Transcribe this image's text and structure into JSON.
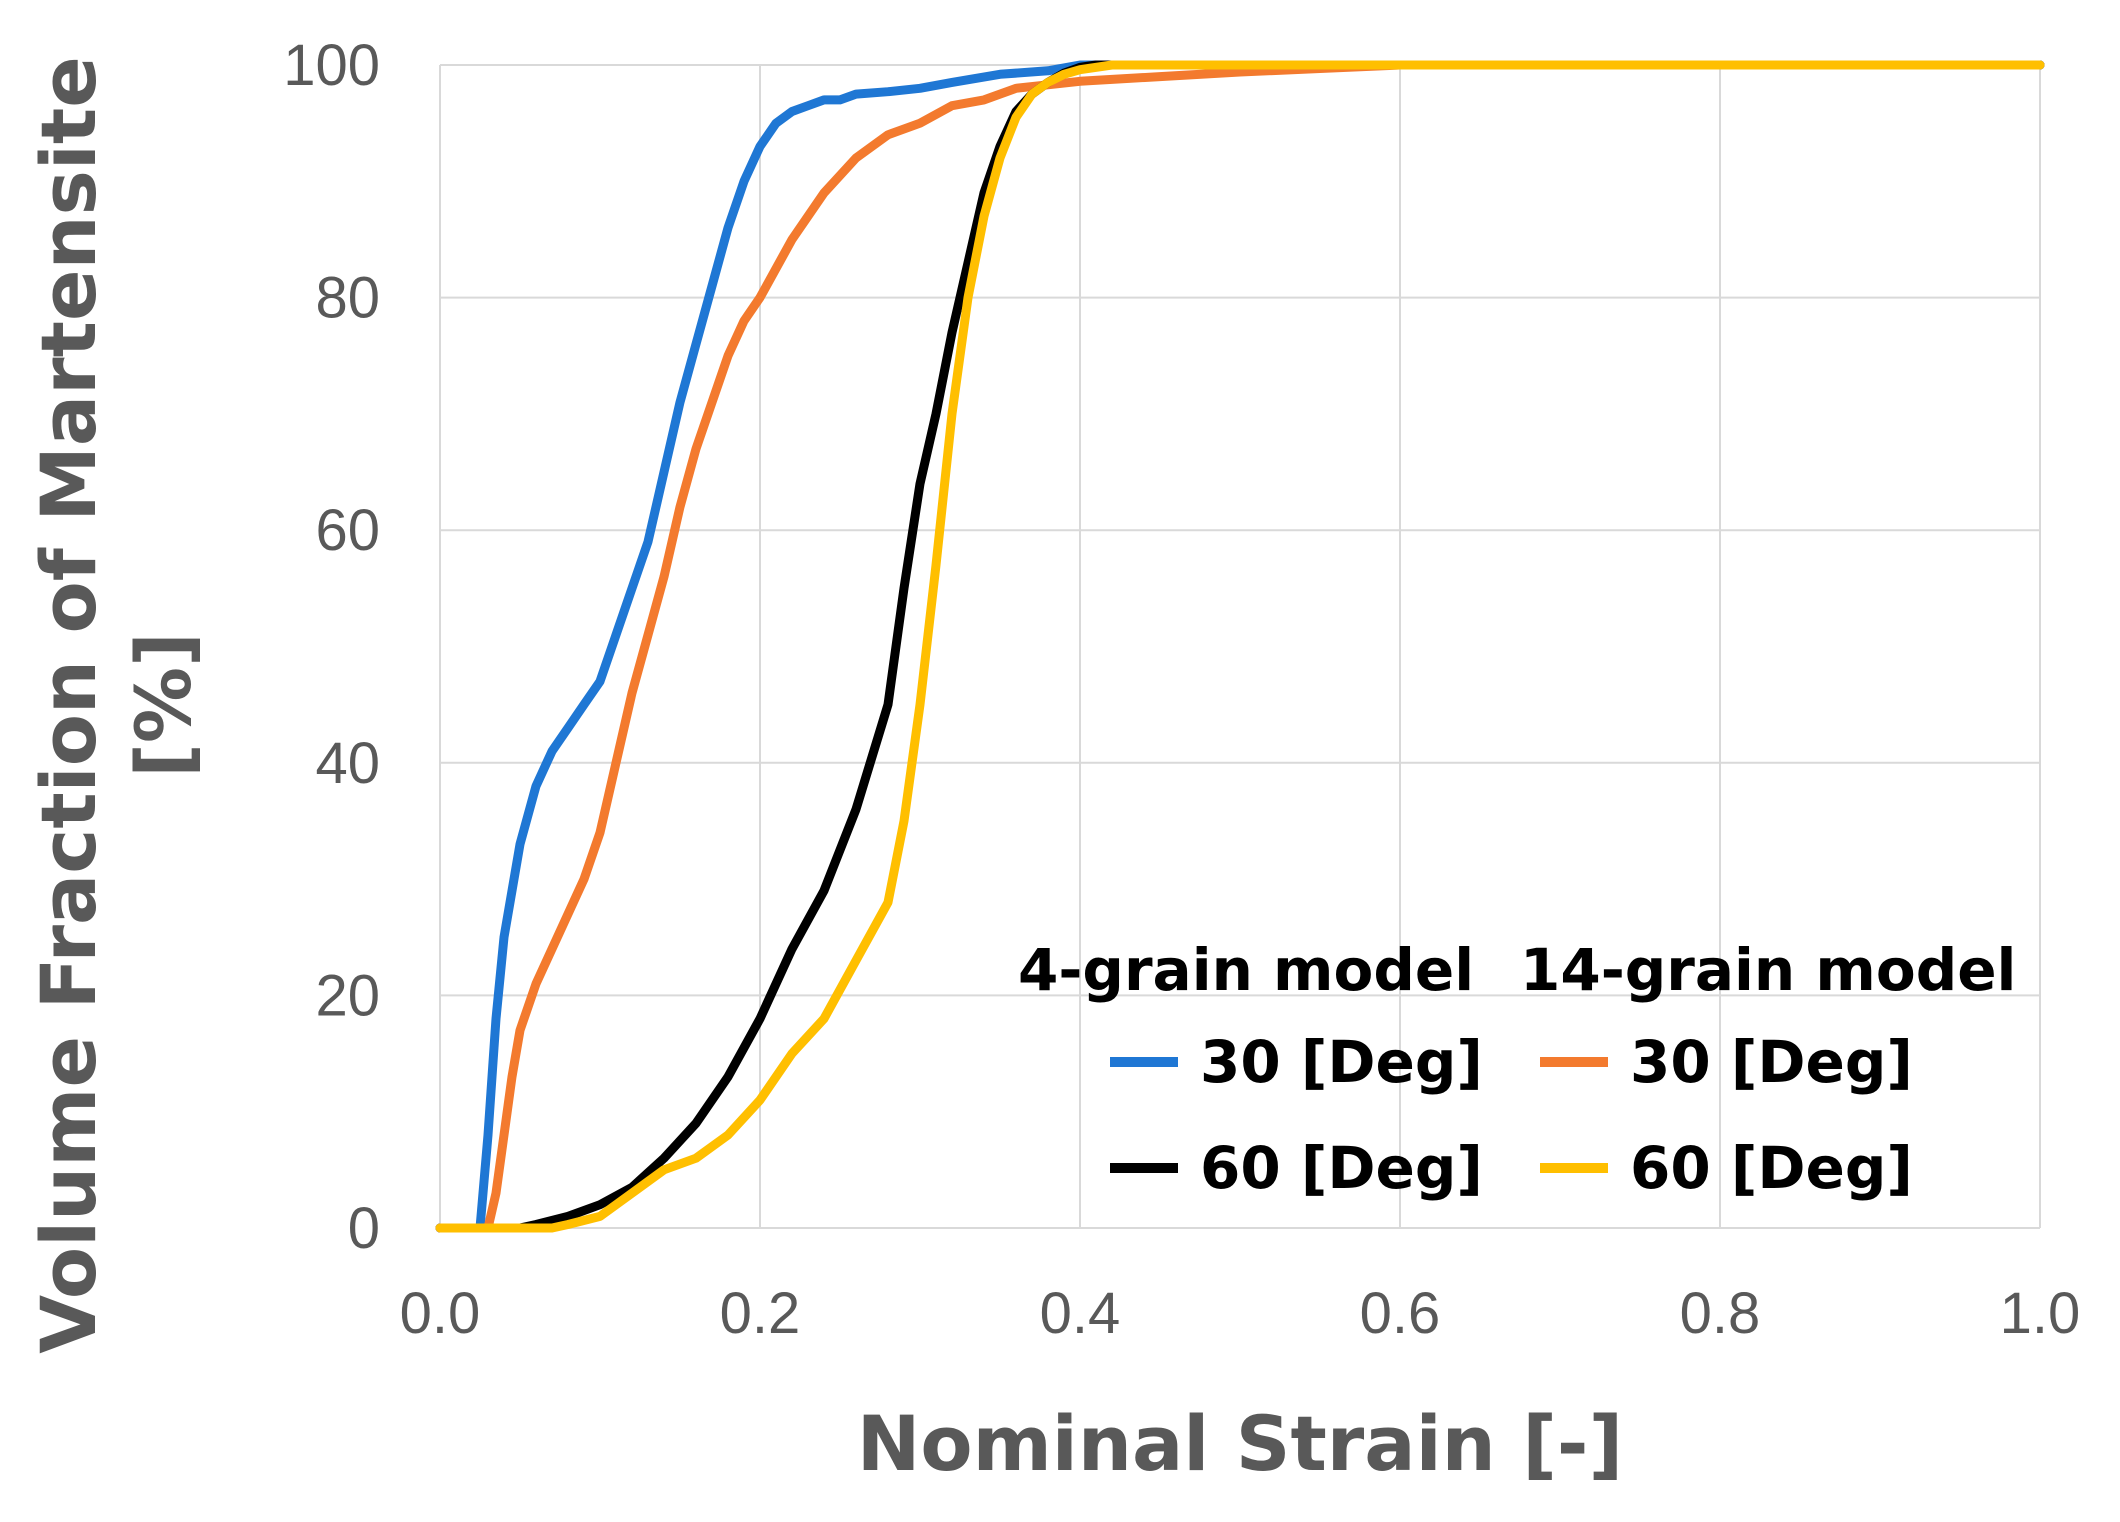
{
  "chart_data": {
    "type": "line",
    "title": "",
    "xlabel": "Nominal Strain [-]",
    "ylabel_line1": "Volume Fraction of Martensite",
    "ylabel_line2": "[%]",
    "xlim": [
      0,
      1
    ],
    "ylim": [
      0,
      100
    ],
    "grid": true,
    "x_ticks": [
      0,
      0.2,
      0.4,
      0.6,
      0.8,
      1.0
    ],
    "x_tick_labels": [
      "0.0",
      "0.2",
      "0.4",
      "0.6",
      "0.8",
      "1.0"
    ],
    "y_ticks": [
      0,
      20,
      40,
      60,
      80,
      100
    ],
    "y_tick_labels": [
      "0",
      "20",
      "40",
      "60",
      "80",
      "100"
    ],
    "legend": {
      "placement": "bottom-right",
      "group_headers": [
        "4-grain model",
        "14-grain model"
      ]
    },
    "series": [
      {
        "name": "30 [Deg]",
        "group": "4-grain model",
        "color": "#1f77d4",
        "x": [
          0,
          0.025,
          0.03,
          0.035,
          0.04,
          0.05,
          0.06,
          0.07,
          0.08,
          0.09,
          0.1,
          0.11,
          0.12,
          0.13,
          0.14,
          0.15,
          0.16,
          0.17,
          0.18,
          0.19,
          0.2,
          0.21,
          0.22,
          0.23,
          0.24,
          0.25,
          0.26,
          0.28,
          0.3,
          0.32,
          0.35,
          0.38,
          0.4,
          0.42,
          0.5,
          0.6,
          0.7,
          0.8,
          0.9,
          1.0
        ],
        "y": [
          0,
          0,
          8,
          18,
          25,
          33,
          38,
          41,
          43,
          45,
          47,
          51,
          55,
          59,
          65,
          71,
          76,
          81,
          86,
          90,
          93,
          95,
          96,
          96.5,
          97,
          97,
          97.5,
          97.7,
          98,
          98.5,
          99.2,
          99.5,
          100,
          100,
          100,
          100,
          100,
          100,
          100,
          100
        ]
      },
      {
        "name": "60 [Deg]",
        "group": "4-grain model",
        "color": "#000000",
        "x": [
          0,
          0.05,
          0.06,
          0.08,
          0.1,
          0.12,
          0.14,
          0.16,
          0.18,
          0.2,
          0.22,
          0.24,
          0.26,
          0.28,
          0.29,
          0.3,
          0.31,
          0.32,
          0.33,
          0.34,
          0.35,
          0.36,
          0.37,
          0.38,
          0.39,
          0.4,
          0.41,
          0.5,
          0.6,
          0.7,
          0.8,
          0.9,
          1.0
        ],
        "y": [
          0,
          0,
          0.3,
          1,
          2,
          3.5,
          6,
          9,
          13,
          18,
          24,
          29,
          36,
          45,
          55,
          64,
          70,
          77,
          83,
          89,
          93,
          96,
          97.5,
          98.5,
          99.3,
          99.8,
          100,
          100,
          100,
          100,
          100,
          100,
          100
        ]
      },
      {
        "name": "30 [Deg]",
        "group": "14-grain model",
        "color": "#f37a2e",
        "x": [
          0,
          0.03,
          0.035,
          0.04,
          0.045,
          0.05,
          0.06,
          0.07,
          0.08,
          0.09,
          0.1,
          0.11,
          0.12,
          0.13,
          0.14,
          0.15,
          0.16,
          0.17,
          0.18,
          0.19,
          0.2,
          0.22,
          0.24,
          0.26,
          0.28,
          0.3,
          0.32,
          0.34,
          0.36,
          0.38,
          0.4,
          0.45,
          0.5,
          0.55,
          0.6,
          0.7,
          0.8,
          0.9,
          1.0
        ],
        "y": [
          0,
          0,
          3,
          8,
          13,
          17,
          21,
          24,
          27,
          30,
          34,
          40,
          46,
          51,
          56,
          62,
          67,
          71,
          75,
          78,
          80,
          85,
          89,
          92,
          94,
          95,
          96.5,
          97,
          98,
          98.3,
          98.6,
          99,
          99.4,
          99.7,
          100,
          100,
          100,
          100,
          100
        ]
      },
      {
        "name": "60 [Deg]",
        "group": "14-grain model",
        "color": "#ffbf00",
        "x": [
          0,
          0.07,
          0.08,
          0.1,
          0.12,
          0.14,
          0.16,
          0.18,
          0.2,
          0.22,
          0.24,
          0.26,
          0.28,
          0.29,
          0.3,
          0.31,
          0.32,
          0.33,
          0.34,
          0.35,
          0.36,
          0.37,
          0.38,
          0.39,
          0.4,
          0.42,
          0.5,
          0.6,
          0.7,
          0.8,
          0.9,
          1.0
        ],
        "y": [
          0,
          0,
          0.3,
          1,
          3,
          5,
          6,
          8,
          11,
          15,
          18,
          23,
          28,
          35,
          45,
          57,
          70,
          80,
          87,
          92,
          95.5,
          97.5,
          98.5,
          99.2,
          99.6,
          100,
          100,
          100,
          100,
          100,
          100,
          100
        ]
      }
    ]
  }
}
